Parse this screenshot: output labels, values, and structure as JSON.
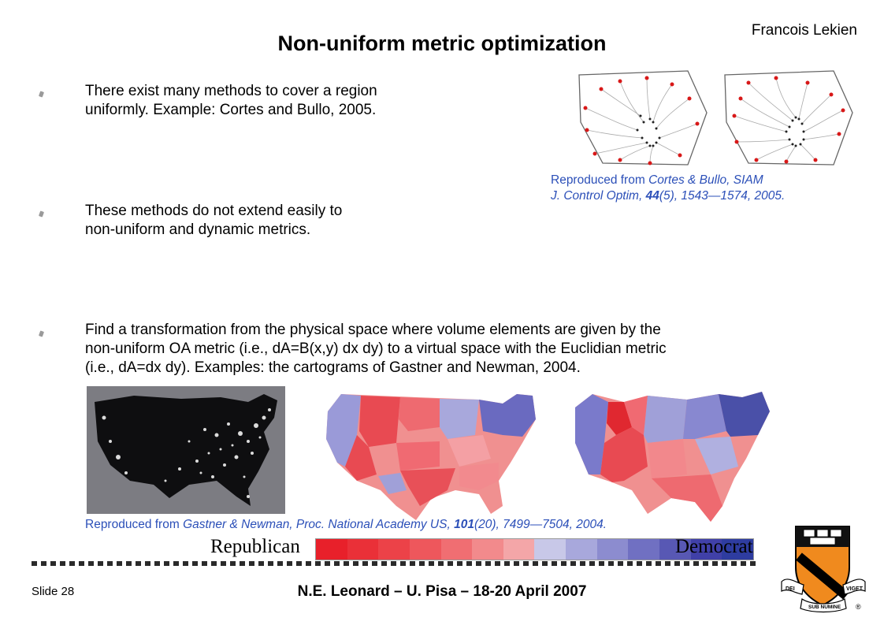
{
  "slide": {
    "title": "Non-uniform metric optimization",
    "author": "Francois Lekien",
    "bullets": [
      {
        "line1": "There exist many methods to cover a region",
        "line2": "uniformly. Example: Cortes and Bullo, 2005."
      },
      {
        "line1": "These methods do not extend easily to",
        "line2": "non-uniform and dynamic metrics."
      },
      {
        "line1": "Find a transformation from the physical space where volume elements are given by the",
        "line2": "non-uniform OA metric (i.e., dA=B(x,y) dx dy) to a virtual space with the Euclidian metric",
        "line3": "(i.e., dA=dx dy). Examples: the cartograms of Gastner and Newman, 2004."
      }
    ],
    "caption_cortes": {
      "prefix": "Reproduced from ",
      "authors": "Cortes & Bullo, SIAM",
      "journal_a": "J. Control Optim, ",
      "volume": "44",
      "journal_b": "(5), 1543—1574, 2005."
    },
    "caption_gastner": {
      "prefix": "Reproduced from ",
      "authors": "Gastner & Newman, Proc. National Academy US, ",
      "volume": "101",
      "rest": "(20), 7499—7504, 2004."
    },
    "legend": {
      "left": "Republican",
      "right": "Democrat",
      "colors": [
        "#e8202a",
        "#ea3038",
        "#ec4248",
        "#ee575c",
        "#f06e72",
        "#f28a8c",
        "#f4a6a8",
        "#c8c8e8",
        "#a8a8dc",
        "#8c8ccf",
        "#7070c2",
        "#5858b4",
        "#4040a8",
        "#2e3ca0"
      ]
    },
    "footer": {
      "slide_number": "Slide 28",
      "center": "N.E. Leonard – U. Pisa – 18-20 April 2007"
    },
    "logo": {
      "motto_left": "DEI",
      "motto_center": "SUB NUMINE",
      "motto_right": "VIGET",
      "mark": "®"
    }
  }
}
